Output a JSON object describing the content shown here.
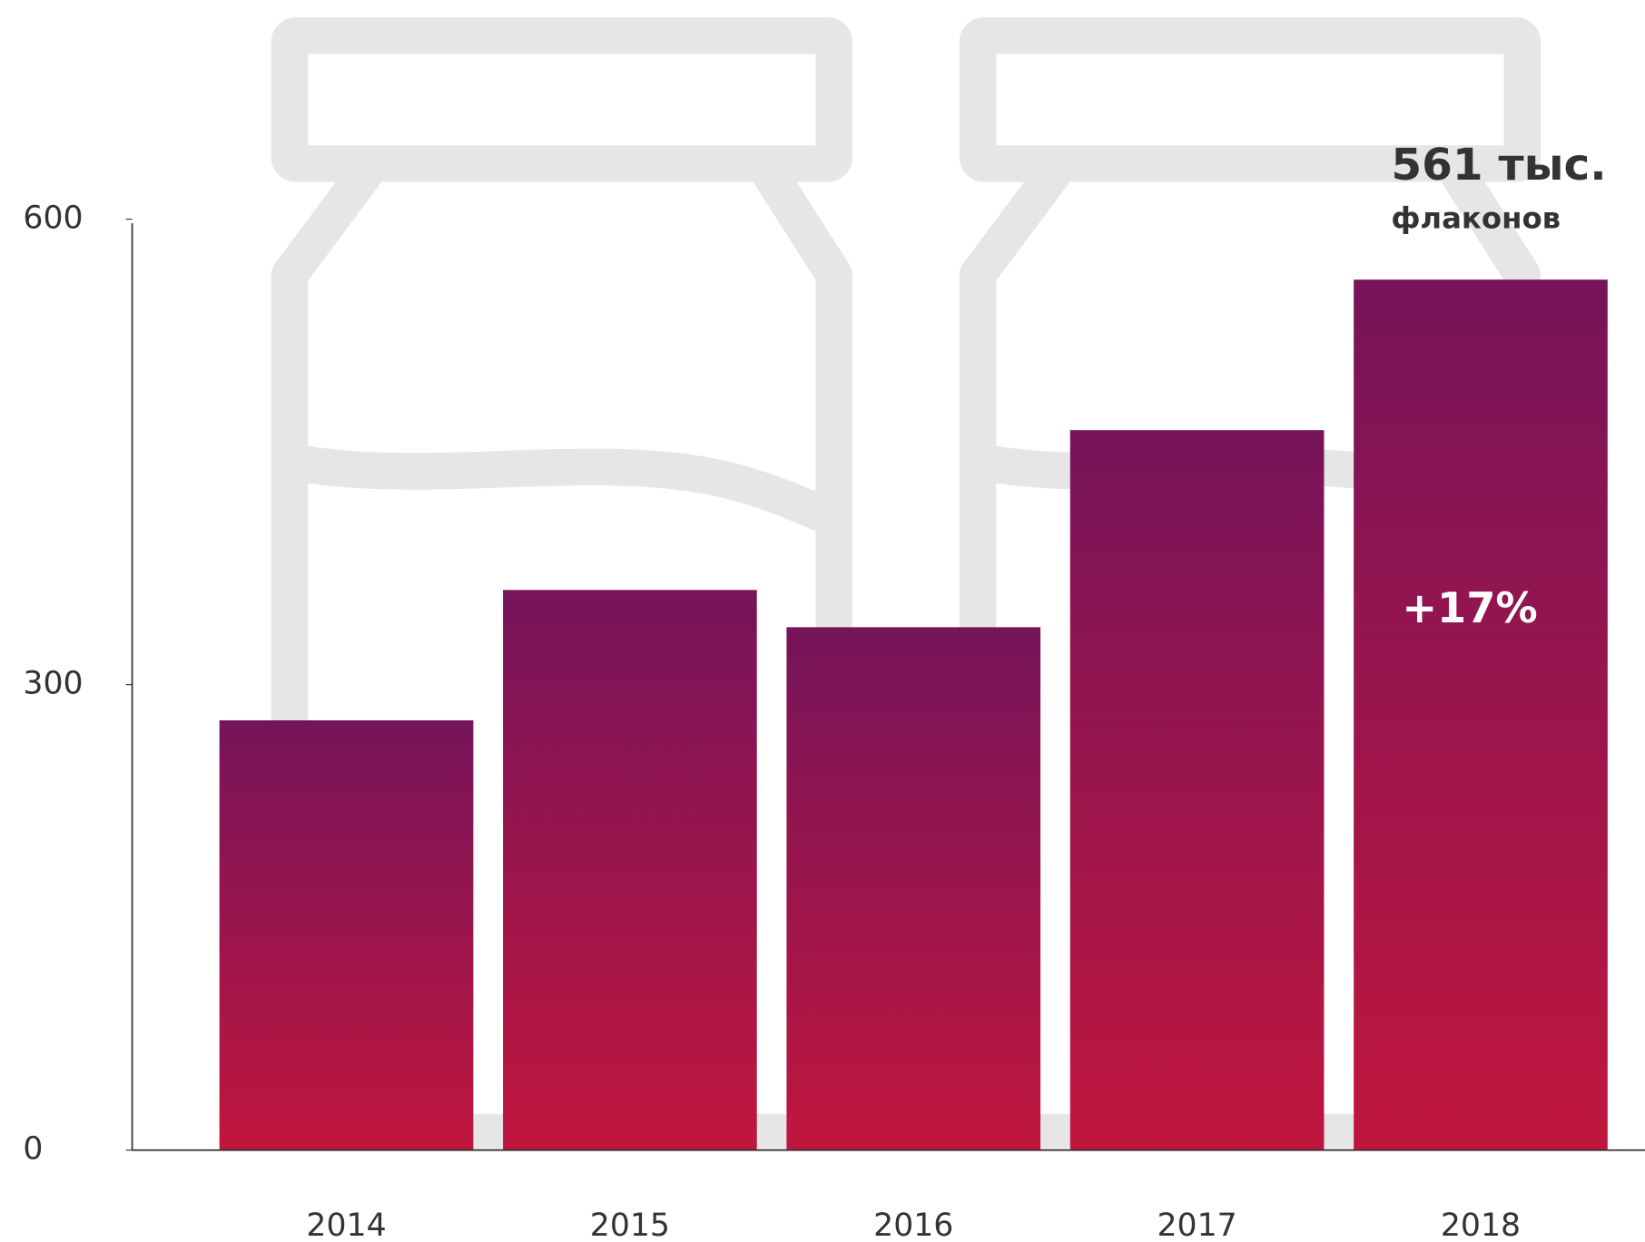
{
  "chart_data": {
    "type": "bar",
    "categories": [
      "2014",
      "2015",
      "2016",
      "2017",
      "2018"
    ],
    "values": [
      277,
      361,
      337,
      464,
      561
    ],
    "colors": [
      "#76145a",
      "#c0163e"
    ],
    "ylim": [
      0,
      600
    ],
    "yticks": [
      0,
      300,
      600
    ],
    "grid": false,
    "annotations": [
      "561 тыс.",
      "флаконов",
      "+17%"
    ]
  }
}
